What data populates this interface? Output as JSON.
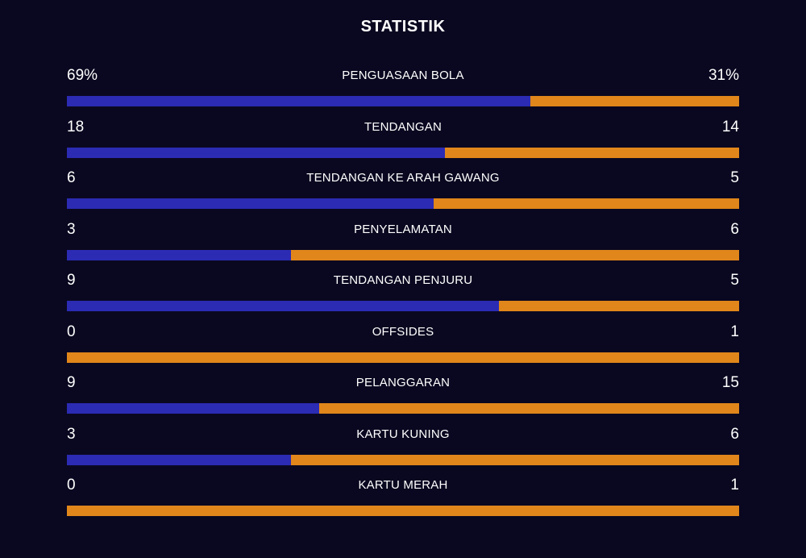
{
  "title": "STATISTIK",
  "colors": {
    "background": "#0a0820",
    "home_bar": "#2b2bb3",
    "away_bar": "#e0861a",
    "text": "#ffffff"
  },
  "stats": [
    {
      "label": "PENGUASAAN BOLA",
      "home": "69%",
      "away": "31%",
      "home_value": 69,
      "away_value": 31
    },
    {
      "label": "TENDANGAN",
      "home": "18",
      "away": "14",
      "home_value": 18,
      "away_value": 14
    },
    {
      "label": "TENDANGAN KE ARAH GAWANG",
      "home": "6",
      "away": "5",
      "home_value": 6,
      "away_value": 5
    },
    {
      "label": "PENYELAMATAN",
      "home": "3",
      "away": "6",
      "home_value": 3,
      "away_value": 6
    },
    {
      "label": "TENDANGAN PENJURU",
      "home": "9",
      "away": "5",
      "home_value": 9,
      "away_value": 5
    },
    {
      "label": "OFFSIDES",
      "home": "0",
      "away": "1",
      "home_value": 0,
      "away_value": 1
    },
    {
      "label": "PELANGGARAN",
      "home": "9",
      "away": "15",
      "home_value": 9,
      "away_value": 15
    },
    {
      "label": "KARTU KUNING",
      "home": "3",
      "away": "6",
      "home_value": 3,
      "away_value": 6
    },
    {
      "label": "KARTU MERAH",
      "home": "0",
      "away": "1",
      "home_value": 0,
      "away_value": 1
    }
  ]
}
